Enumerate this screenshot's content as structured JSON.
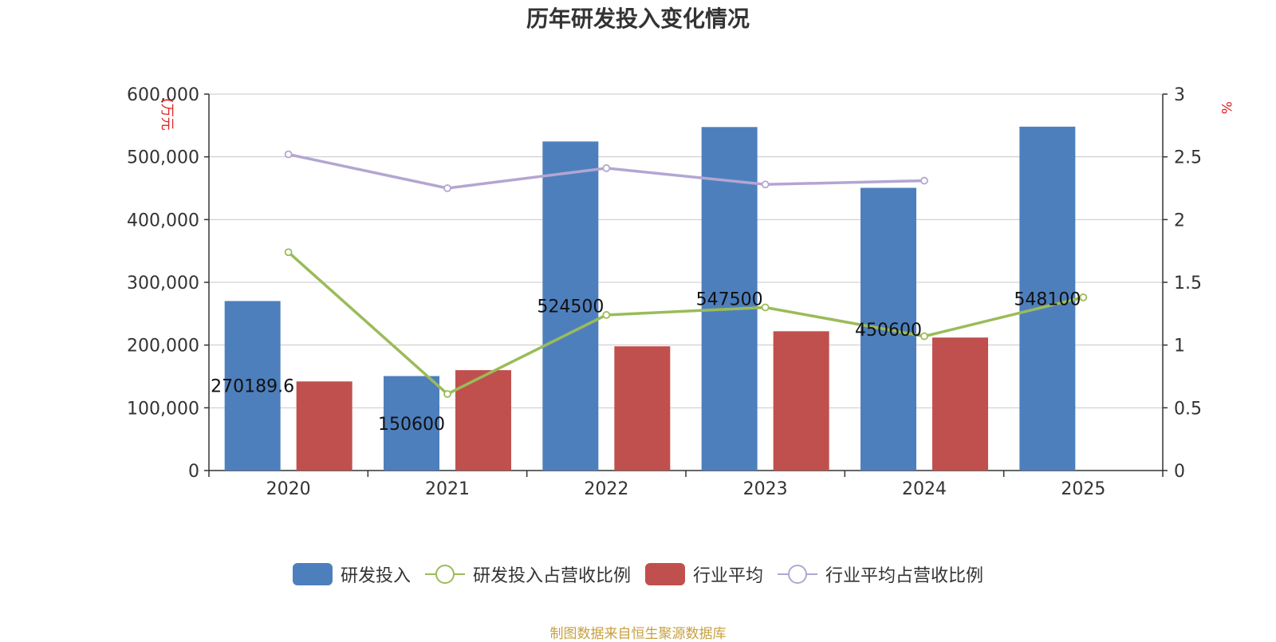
{
  "title": "历年研发投入变化情况",
  "source": "制图数据来自恒生聚源数据库",
  "chart_data": {
    "type": "bar",
    "categories": [
      "2020",
      "2021",
      "2022",
      "2023",
      "2024",
      "2025"
    ],
    "ylabel_left": "(万元",
    "ylabel_right": "%",
    "ylim_left": [
      0,
      600000
    ],
    "ylim_right": [
      0,
      3
    ],
    "yticks_left": [
      "0",
      "100,000",
      "200,000",
      "300,000",
      "400,000",
      "500,000",
      "600,000"
    ],
    "yticks_right": [
      "0",
      "0.5",
      "1",
      "1.5",
      "2",
      "2.5",
      "3"
    ],
    "grid": true,
    "legend_position": "bottom",
    "series": [
      {
        "name": "研发投入",
        "type": "bar",
        "axis": "left",
        "color": "#4e7fbd",
        "values": [
          270189.6,
          150600,
          524500,
          547500,
          450600,
          548100
        ],
        "labels": [
          "270189.6",
          "150600",
          "524500",
          "547500",
          "450600",
          "548100"
        ]
      },
      {
        "name": "研发投入占营收比例",
        "type": "line",
        "axis": "right",
        "color": "#9bbb59",
        "values": [
          1.74,
          0.61,
          1.24,
          1.3,
          1.07,
          1.38
        ]
      },
      {
        "name": "行业平均",
        "type": "bar",
        "axis": "left",
        "color": "#c0504d",
        "values": [
          142000,
          160000,
          198000,
          222000,
          212000,
          null
        ]
      },
      {
        "name": "行业平均占营收比例",
        "type": "line",
        "axis": "right",
        "color": "#b3a6d2",
        "values": [
          2.52,
          2.25,
          2.41,
          2.28,
          2.31,
          null
        ]
      }
    ]
  }
}
